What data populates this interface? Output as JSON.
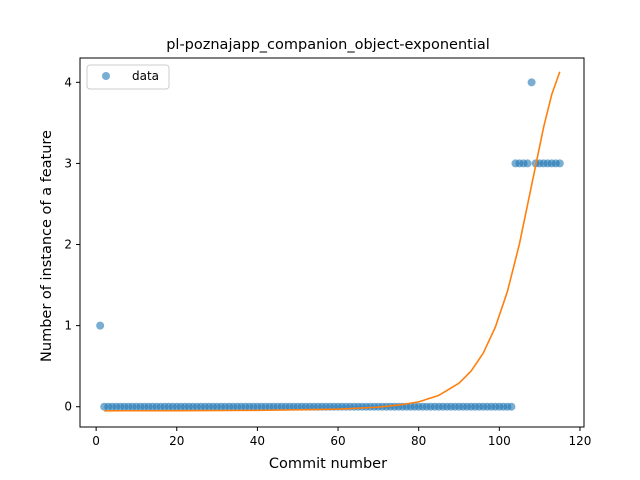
{
  "chart_data": {
    "type": "scatter",
    "title": "pl-poznajapp_companion_object-exponential",
    "xlabel": "Commit number",
    "ylabel": "Number of instance of a feature",
    "xlim": [
      -4,
      121
    ],
    "ylim": [
      -0.25,
      4.3
    ],
    "xticks": [
      0,
      20,
      40,
      60,
      80,
      100,
      120
    ],
    "yticks": [
      0,
      1,
      2,
      3,
      4
    ],
    "grid": false,
    "legend": {
      "placement": "top-left",
      "entries": [
        "data"
      ]
    },
    "colors": {
      "data": "#1f77b4",
      "fit": "#ff7f0e"
    },
    "series": [
      {
        "name": "data",
        "kind": "scatter",
        "x": [
          1,
          2,
          3,
          4,
          5,
          6,
          7,
          8,
          9,
          10,
          11,
          12,
          13,
          14,
          15,
          16,
          17,
          18,
          19,
          20,
          21,
          22,
          23,
          24,
          25,
          26,
          27,
          28,
          29,
          30,
          31,
          32,
          33,
          34,
          35,
          36,
          37,
          38,
          39,
          40,
          41,
          42,
          43,
          44,
          45,
          46,
          47,
          48,
          49,
          50,
          51,
          52,
          53,
          54,
          55,
          56,
          57,
          58,
          59,
          60,
          61,
          62,
          63,
          64,
          65,
          66,
          67,
          68,
          69,
          70,
          71,
          72,
          73,
          74,
          75,
          76,
          77,
          78,
          79,
          80,
          81,
          82,
          83,
          84,
          85,
          86,
          87,
          88,
          89,
          90,
          91,
          92,
          93,
          94,
          95,
          96,
          97,
          98,
          99,
          100,
          101,
          102,
          103,
          104,
          105,
          106,
          107,
          108,
          109,
          110,
          111,
          112,
          113,
          114,
          115
        ],
        "y": [
          1,
          0,
          0,
          0,
          0,
          0,
          0,
          0,
          0,
          0,
          0,
          0,
          0,
          0,
          0,
          0,
          0,
          0,
          0,
          0,
          0,
          0,
          0,
          0,
          0,
          0,
          0,
          0,
          0,
          0,
          0,
          0,
          0,
          0,
          0,
          0,
          0,
          0,
          0,
          0,
          0,
          0,
          0,
          0,
          0,
          0,
          0,
          0,
          0,
          0,
          0,
          0,
          0,
          0,
          0,
          0,
          0,
          0,
          0,
          0,
          0,
          0,
          0,
          0,
          0,
          0,
          0,
          0,
          0,
          0,
          0,
          0,
          0,
          0,
          0,
          0,
          0,
          0,
          0,
          0,
          0,
          0,
          0,
          0,
          0,
          0,
          0,
          0,
          0,
          0,
          0,
          0,
          0,
          0,
          0,
          0,
          0,
          0,
          0,
          0,
          0,
          0,
          0,
          3,
          3,
          3,
          3,
          4,
          3,
          3,
          3,
          3,
          3,
          3,
          3
        ]
      },
      {
        "kind": "line",
        "x": [
          2,
          20,
          40,
          60,
          70,
          75,
          80,
          85,
          90,
          93,
          96,
          99,
          102,
          105,
          108,
          111,
          113,
          115
        ],
        "y": [
          -0.05,
          -0.049,
          -0.045,
          -0.03,
          -0.005,
          0.02,
          0.06,
          0.14,
          0.29,
          0.44,
          0.66,
          0.98,
          1.42,
          2.01,
          2.73,
          3.45,
          3.85,
          4.13
        ]
      }
    ]
  }
}
